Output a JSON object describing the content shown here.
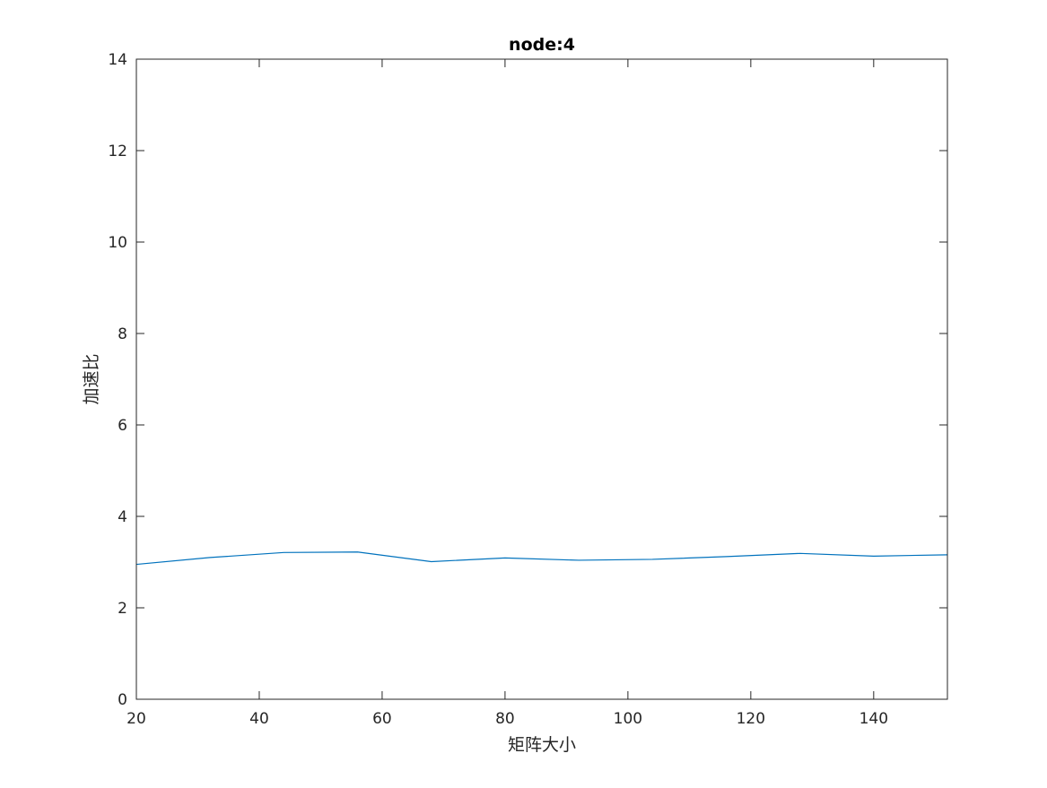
{
  "chart_data": {
    "type": "line",
    "title": "node:4",
    "xlabel": "矩阵大小",
    "ylabel": "加速比",
    "xlim": [
      20,
      152
    ],
    "ylim": [
      0,
      14
    ],
    "xticks": [
      20,
      40,
      60,
      80,
      100,
      120,
      140
    ],
    "yticks": [
      0,
      2,
      4,
      6,
      8,
      10,
      12,
      14
    ],
    "grid": false,
    "series": [
      {
        "color": "#0072BD",
        "x": [
          20,
          32,
          44,
          56,
          68,
          80,
          92,
          104,
          116,
          128,
          140,
          152
        ],
        "y": [
          2.95,
          3.1,
          3.21,
          3.22,
          3.01,
          3.09,
          3.04,
          3.06,
          3.12,
          3.19,
          3.13,
          3.16
        ]
      }
    ]
  }
}
